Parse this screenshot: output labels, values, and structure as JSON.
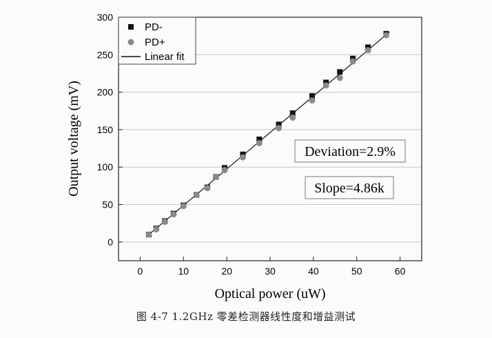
{
  "chart_data": {
    "type": "scatter",
    "xlabel": "Optical power (uW)",
    "ylabel": "Output voltage (mV)",
    "xlim": [
      -5,
      65
    ],
    "ylim": [
      -25,
      300
    ],
    "xticks": [
      0,
      10,
      20,
      30,
      40,
      50,
      60
    ],
    "yticks": [
      0,
      50,
      100,
      150,
      200,
      250,
      300
    ],
    "grid": "horizontal",
    "legend_position": "top-left",
    "series": [
      {
        "name": "PD-",
        "marker": "square",
        "color": "#111111",
        "x": [
          2,
          3.7,
          5.7,
          7.7,
          10,
          13,
          15.5,
          17.5,
          19.5,
          23.7,
          27.5,
          32,
          35.2,
          39.7,
          42.9,
          46.1,
          49.1,
          52.6,
          56.8
        ],
        "y": [
          10,
          18,
          28,
          38,
          49,
          63,
          73,
          87,
          99,
          117,
          137,
          157,
          172,
          195,
          213,
          227,
          245,
          260,
          278
        ]
      },
      {
        "name": "PD+",
        "marker": "circle",
        "color": "#8a8a8a",
        "x": [
          2,
          3.7,
          5.7,
          7.7,
          10,
          13,
          15.5,
          17.5,
          19.5,
          23.7,
          27.5,
          32,
          35.2,
          39.7,
          42.9,
          46.1,
          49.1,
          52.6,
          56.8
        ],
        "y": [
          10,
          17,
          27,
          37,
          48,
          63,
          72,
          87,
          96,
          113,
          132,
          152,
          166,
          189,
          209,
          219,
          241,
          256,
          276
        ]
      }
    ],
    "fit": {
      "name": "Linear fit",
      "color": "#111111",
      "x": [
        1.5,
        57.5
      ],
      "y": [
        7.5,
        280
      ]
    },
    "annotations": [
      "Deviation=2.9%",
      "Slope=4.86k"
    ]
  },
  "caption": "图 4-7    1.2GHz 零差检测器线性度和增益测试"
}
